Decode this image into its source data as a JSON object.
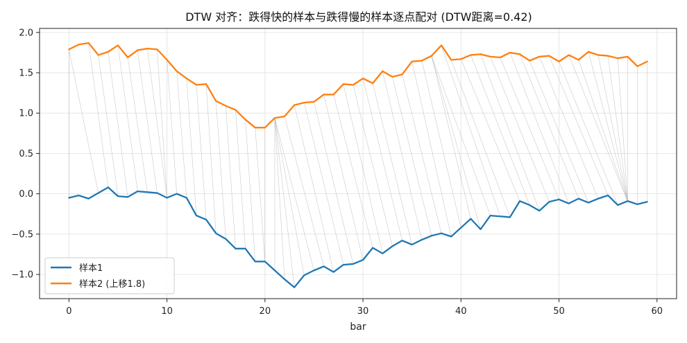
{
  "chart_data": {
    "type": "line",
    "title": "DTW 对齐：跌得快的样本与跌得慢的样本逐点配对 (DTW距离=0.42)",
    "xlabel": "bar",
    "ylabel": "",
    "xlim": [
      -3,
      62
    ],
    "ylim": [
      -1.3,
      2.05
    ],
    "xticks": [
      0,
      10,
      20,
      30,
      40,
      50,
      60
    ],
    "yticks": [
      -1.0,
      -0.5,
      0.0,
      0.5,
      1.0,
      1.5,
      2.0
    ],
    "grid": true,
    "legend_position": "lower-left",
    "x": [
      0,
      1,
      2,
      3,
      4,
      5,
      6,
      7,
      8,
      9,
      10,
      11,
      12,
      13,
      14,
      15,
      16,
      17,
      18,
      19,
      20,
      21,
      22,
      23,
      24,
      25,
      26,
      27,
      28,
      29,
      30,
      31,
      32,
      33,
      34,
      35,
      36,
      37,
      38,
      39,
      40,
      41,
      42,
      43,
      44,
      45,
      46,
      47,
      48,
      49,
      50,
      51,
      52,
      53,
      54,
      55,
      56,
      57,
      58,
      59
    ],
    "series": [
      {
        "name": "样本1",
        "color": "#1f77b4",
        "values": [
          -0.05,
          -0.02,
          -0.06,
          0.01,
          0.08,
          -0.03,
          -0.04,
          0.03,
          0.02,
          0.01,
          -0.05,
          0.0,
          -0.05,
          -0.27,
          -0.32,
          -0.49,
          -0.56,
          -0.68,
          -0.68,
          -0.84,
          -0.84,
          -0.95,
          -1.06,
          -1.16,
          -1.01,
          -0.95,
          -0.9,
          -0.97,
          -0.88,
          -0.87,
          -0.82,
          -0.67,
          -0.74,
          -0.65,
          -0.58,
          -0.63,
          -0.57,
          -0.52,
          -0.49,
          -0.53,
          -0.42,
          -0.31,
          -0.44,
          -0.27,
          -0.28,
          -0.29,
          -0.09,
          -0.14,
          -0.21,
          -0.1,
          -0.07,
          -0.12,
          -0.06,
          -0.11,
          -0.06,
          -0.02,
          -0.14,
          -0.09,
          -0.13,
          -0.1
        ]
      },
      {
        "name": "样本2 (上移1.8)",
        "color": "#ff7f0e",
        "values": [
          1.79,
          1.85,
          1.87,
          1.72,
          1.76,
          1.84,
          1.69,
          1.78,
          1.8,
          1.79,
          1.66,
          1.52,
          1.43,
          1.35,
          1.36,
          1.15,
          1.09,
          1.04,
          0.92,
          0.82,
          0.82,
          0.94,
          0.96,
          1.1,
          1.13,
          1.14,
          1.23,
          1.23,
          1.36,
          1.35,
          1.43,
          1.37,
          1.52,
          1.45,
          1.48,
          1.64,
          1.65,
          1.71,
          1.84,
          1.66,
          1.67,
          1.72,
          1.73,
          1.7,
          1.69,
          1.75,
          1.73,
          1.65,
          1.7,
          1.71,
          1.64,
          1.72,
          1.66,
          1.76,
          1.72,
          1.71,
          1.68,
          1.7,
          1.58,
          1.64
        ]
      }
    ],
    "alignment_pairs": [
      [
        0,
        0
      ],
      [
        3,
        0
      ],
      [
        4,
        2
      ],
      [
        5,
        3
      ],
      [
        6,
        4
      ],
      [
        7,
        5
      ],
      [
        8,
        6
      ],
      [
        9,
        7
      ],
      [
        10,
        8
      ],
      [
        10,
        9
      ],
      [
        11,
        10
      ],
      [
        12,
        11
      ],
      [
        13,
        12
      ],
      [
        14,
        13
      ],
      [
        15,
        14
      ],
      [
        16,
        15
      ],
      [
        17,
        16
      ],
      [
        18,
        17
      ],
      [
        19,
        18
      ],
      [
        20,
        19
      ],
      [
        20,
        20
      ],
      [
        21,
        21
      ],
      [
        22,
        21
      ],
      [
        23,
        21
      ],
      [
        24,
        21
      ],
      [
        25,
        21
      ],
      [
        26,
        22
      ],
      [
        27,
        23
      ],
      [
        28,
        24
      ],
      [
        29,
        25
      ],
      [
        30,
        26
      ],
      [
        31,
        27
      ],
      [
        32,
        28
      ],
      [
        33,
        29
      ],
      [
        34,
        30
      ],
      [
        35,
        31
      ],
      [
        36,
        32
      ],
      [
        37,
        33
      ],
      [
        38,
        34
      ],
      [
        39,
        35
      ],
      [
        40,
        36
      ],
      [
        41,
        37
      ],
      [
        42,
        37
      ],
      [
        43,
        37
      ],
      [
        44,
        38
      ],
      [
        45,
        39
      ],
      [
        46,
        40
      ],
      [
        47,
        41
      ],
      [
        48,
        42
      ],
      [
        49,
        43
      ],
      [
        50,
        44
      ],
      [
        51,
        45
      ],
      [
        52,
        46
      ],
      [
        53,
        47
      ],
      [
        54,
        48
      ],
      [
        55,
        49
      ],
      [
        56,
        50
      ],
      [
        57,
        51
      ],
      [
        57,
        52
      ],
      [
        57,
        53
      ],
      [
        57,
        54
      ],
      [
        57,
        55
      ],
      [
        57,
        56
      ],
      [
        57,
        57
      ],
      [
        58,
        58
      ],
      [
        59,
        59
      ]
    ]
  }
}
